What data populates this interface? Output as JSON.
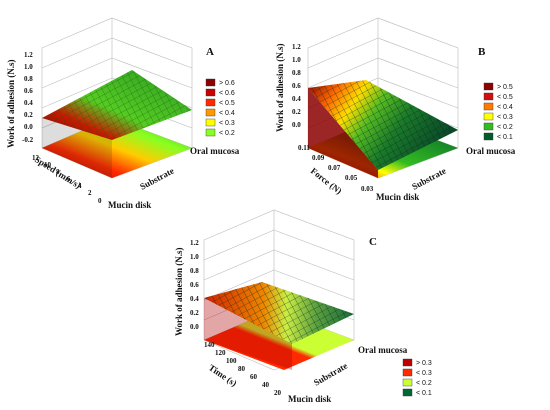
{
  "chart_data": [
    {
      "type": "surface3d",
      "panel": "A",
      "zlabel": "Work of adhesion (N.s)",
      "zticks": [
        "1.2",
        "1.0",
        "0.8",
        "0.6",
        "0.4",
        "0.2",
        "0.0",
        "-0.2"
      ],
      "ylabel": "Speed (mm/s)",
      "yticks": [
        "12",
        "10",
        "8",
        "6",
        "4",
        "2",
        "0"
      ],
      "xlabel": "Substrate",
      "xcategories": [
        "Mucin disk",
        "Oral mucosa"
      ],
      "legend": [
        {
          "label": "> 0.6",
          "color": "#8b0000"
        },
        {
          "label": "< 0.6",
          "color": "#c80000"
        },
        {
          "label": "< 0.5",
          "color": "#ff2a00"
        },
        {
          "label": "< 0.4",
          "color": "#ff9900"
        },
        {
          "label": "< 0.3",
          "color": "#ffff00"
        },
        {
          "label": "< 0.2",
          "color": "#88ff22"
        }
      ]
    },
    {
      "type": "surface3d",
      "panel": "B",
      "zlabel": "Work of adhesion (N.s)",
      "zticks": [
        "1.2",
        "1.0",
        "0.8",
        "0.6",
        "0.4",
        "0.2",
        "0.0"
      ],
      "ylabel": "Force (N)",
      "yticks": [
        "0.11",
        "0.09",
        "0.07",
        "0.05",
        "0.03"
      ],
      "xlabel": "Substrate",
      "xcategories": [
        "Mucin disk",
        "Oral mucosa"
      ],
      "legend": [
        {
          "label": "> 0.5",
          "color": "#8b0000"
        },
        {
          "label": "< 0.5",
          "color": "#d01010"
        },
        {
          "label": "< 0.4",
          "color": "#ff7a00"
        },
        {
          "label": "< 0.3",
          "color": "#ffff00"
        },
        {
          "label": "< 0.2",
          "color": "#33bb22"
        },
        {
          "label": "< 0.1",
          "color": "#005a2a"
        }
      ]
    },
    {
      "type": "surface3d",
      "panel": "C",
      "zlabel": "Work of adhesion (N.s)",
      "zticks": [
        "1.2",
        "1.0",
        "0.8",
        "0.6",
        "0.4",
        "0.2",
        "0.0"
      ],
      "ylabel": "Time (s)",
      "yticks": [
        "140",
        "120",
        "100",
        "80",
        "60",
        "40",
        "20"
      ],
      "xlabel": "Substrate",
      "xcategories": [
        "Mucin disk",
        "Oral mucosa"
      ],
      "legend": [
        {
          "label": "> 0.3",
          "color": "#c00000"
        },
        {
          "label": "< 0.3",
          "color": "#ff2a00"
        },
        {
          "label": "< 0.2",
          "color": "#ccff33"
        },
        {
          "label": "< 0.1",
          "color": "#006633"
        }
      ]
    }
  ]
}
